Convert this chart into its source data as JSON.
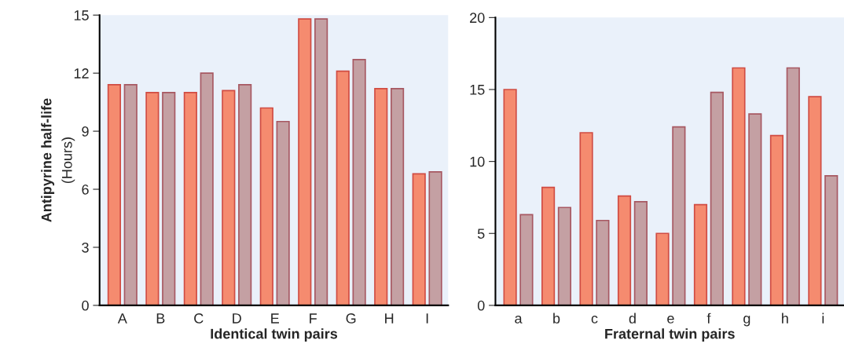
{
  "chart_data": [
    {
      "type": "bar",
      "xlabel": "Identical twin pairs",
      "ylabel": "Antipyrine half-life",
      "annotations": [
        "(Hours)"
      ],
      "categories": [
        "A",
        "B",
        "C",
        "D",
        "E",
        "F",
        "G",
        "H",
        "I"
      ],
      "series": [
        {
          "color": "#f58b6f",
          "values": [
            11.4,
            11.0,
            11.0,
            11.1,
            10.2,
            14.8,
            12.1,
            11.2,
            6.8
          ]
        },
        {
          "color": "#c4a0a3",
          "values": [
            11.4,
            11.0,
            12.0,
            11.4,
            9.5,
            14.8,
            12.7,
            11.2,
            6.9
          ]
        }
      ],
      "ylim": [
        0,
        15
      ],
      "yticks": [
        0,
        3,
        6,
        9,
        12,
        15
      ]
    },
    {
      "type": "bar",
      "xlabel": "Fraternal twin pairs",
      "categories": [
        "a",
        "b",
        "c",
        "d",
        "e",
        "f",
        "g",
        "h",
        "i"
      ],
      "series": [
        {
          "color": "#f58b6f",
          "values": [
            15.0,
            8.2,
            12.0,
            7.6,
            5.0,
            7.0,
            16.5,
            11.8,
            14.5
          ]
        },
        {
          "color": "#c4a0a3",
          "values": [
            6.3,
            6.8,
            5.9,
            7.2,
            12.4,
            14.8,
            13.3,
            16.5,
            9.0
          ]
        }
      ],
      "ylim": [
        0,
        20
      ],
      "yticks": [
        0,
        5,
        10,
        15,
        20
      ]
    }
  ]
}
